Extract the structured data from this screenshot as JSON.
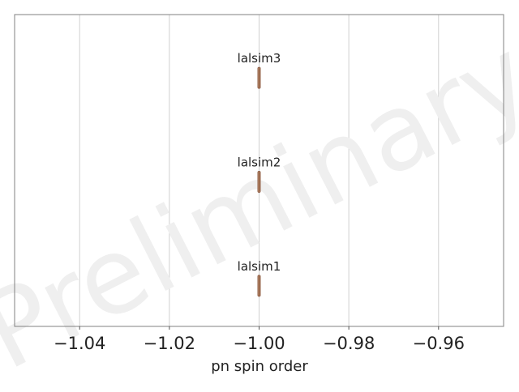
{
  "chart_data": {
    "type": "violin",
    "xlabel": "pn spin order",
    "xlim": [
      -1.0545,
      -0.9455
    ],
    "ticks": [
      {
        "value": -1.04,
        "label": "−1.04"
      },
      {
        "value": -1.02,
        "label": "−1.02"
      },
      {
        "value": -1.0,
        "label": "−1.00"
      },
      {
        "value": -0.98,
        "label": "−0.98"
      },
      {
        "value": -0.96,
        "label": "−0.96"
      }
    ],
    "grid": "vertical",
    "watermark": "Preliminary",
    "series": [
      {
        "name": "lalsim3",
        "value": -1.0
      },
      {
        "name": "lalsim2",
        "value": -1.0
      },
      {
        "name": "lalsim1",
        "value": -1.0
      }
    ],
    "colors": {
      "violin_fill": "#d2a384",
      "violin_edge": "#8c5c44",
      "median_line": "#8b5a3c",
      "grid": "#d0d0d0",
      "frame": "#808080",
      "watermark": "#efefef"
    }
  }
}
